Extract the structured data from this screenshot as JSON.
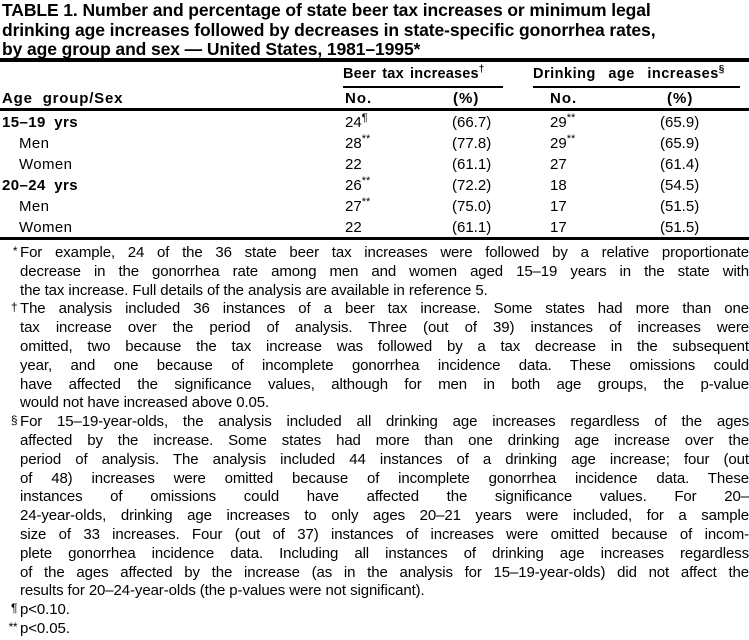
{
  "title": {
    "lines": [
      "TABLE 1. Number and percentage of state beer tax increases or minimum legal",
      "drinking age increases followed by decreases in state-specific gonorrhea rates,",
      "by age group and sex — United States, 1981–1995*"
    ]
  },
  "table": {
    "row_header": "Age group/Sex",
    "groups": [
      {
        "label": "Beer tax increases",
        "marker": "†",
        "sub_no": "No.",
        "sub_pct": "(%)"
      },
      {
        "label": "Drinking age increases",
        "marker": "§",
        "sub_no": "No.",
        "sub_pct": "(%)"
      }
    ],
    "rows": [
      {
        "label": "15–19 yrs",
        "beer_no": "24",
        "beer_no_sup": "¶",
        "beer_pct": "(66.7)",
        "drink_no": "29",
        "drink_no_sup": "**",
        "drink_pct": "(65.9)"
      },
      {
        "label": "Men",
        "beer_no": "28",
        "beer_no_sup": "**",
        "beer_pct": "(77.8)",
        "drink_no": "29",
        "drink_no_sup": "**",
        "drink_pct": "(65.9)"
      },
      {
        "label": "Women",
        "beer_no": "22",
        "beer_no_sup": "",
        "beer_pct": "(61.1)",
        "drink_no": "27",
        "drink_no_sup": "",
        "drink_pct": "(61.4)"
      },
      {
        "label": "20–24 yrs",
        "beer_no": "26",
        "beer_no_sup": "**",
        "beer_pct": "(72.2)",
        "drink_no": "18",
        "drink_no_sup": "",
        "drink_pct": "(54.5)"
      },
      {
        "label": "Men",
        "beer_no": "27",
        "beer_no_sup": "**",
        "beer_pct": "(75.0)",
        "drink_no": "17",
        "drink_no_sup": "",
        "drink_pct": "(51.5)"
      },
      {
        "label": "Women",
        "beer_no": "22",
        "beer_no_sup": "",
        "beer_pct": "(61.1)",
        "drink_no": "17",
        "drink_no_sup": "",
        "drink_pct": "(51.5)"
      }
    ]
  },
  "footnotes": [
    {
      "marker": "*",
      "lines": [
        "For example, 24 of the 36 state beer tax increases were followed by a relative proportionate",
        "decrease in the gonorrhea rate among men and women aged 15–19 years in the state with",
        "the tax increase. Full details of the analysis are available in reference 5."
      ]
    },
    {
      "marker": "†",
      "lines": [
        "The analysis included 36 instances of a beer tax increase. Some states had more than one",
        "tax increase over the period of analysis. Three (out of 39) instances of increases were",
        "omitted, two because the tax increase was followed by a tax decrease in the subsequent",
        "year, and one because of incomplete gonorrhea incidence data. These omissions could",
        "have affected the significance values, although for men in both age groups, the p-value",
        "would not have increased above 0.05."
      ]
    },
    {
      "marker": "§",
      "lines": [
        "For 15–19-year-olds, the analysis included all drinking age increases regardless of the ages",
        "affected by the increase. Some states had more than one drinking age increase over the",
        "period of analysis. The analysis included 44 instances of a drinking age increase; four (out",
        "of 48) increases were omitted because of incomplete gonorrhea incidence data. These",
        "instances of omissions could have affected the significance values. For 20–",
        "24-year-olds, drinking age increases to only ages 20–21 years were included, for a sample",
        "size of 33 increases. Four (out of 37) instances of increases were omitted because of incom-",
        "plete gonorrhea incidence data. Including all instances of drinking age increases regardless",
        "of the ages affected by the increase (as in the analysis for 15–19-year-olds) did not affect the",
        "results for 20–24-year-olds (the p-values were not significant)."
      ]
    },
    {
      "marker": "¶",
      "lines": [
        "p<0.10."
      ]
    },
    {
      "marker": "**",
      "lines": [
        "p<0.05."
      ]
    }
  ]
}
